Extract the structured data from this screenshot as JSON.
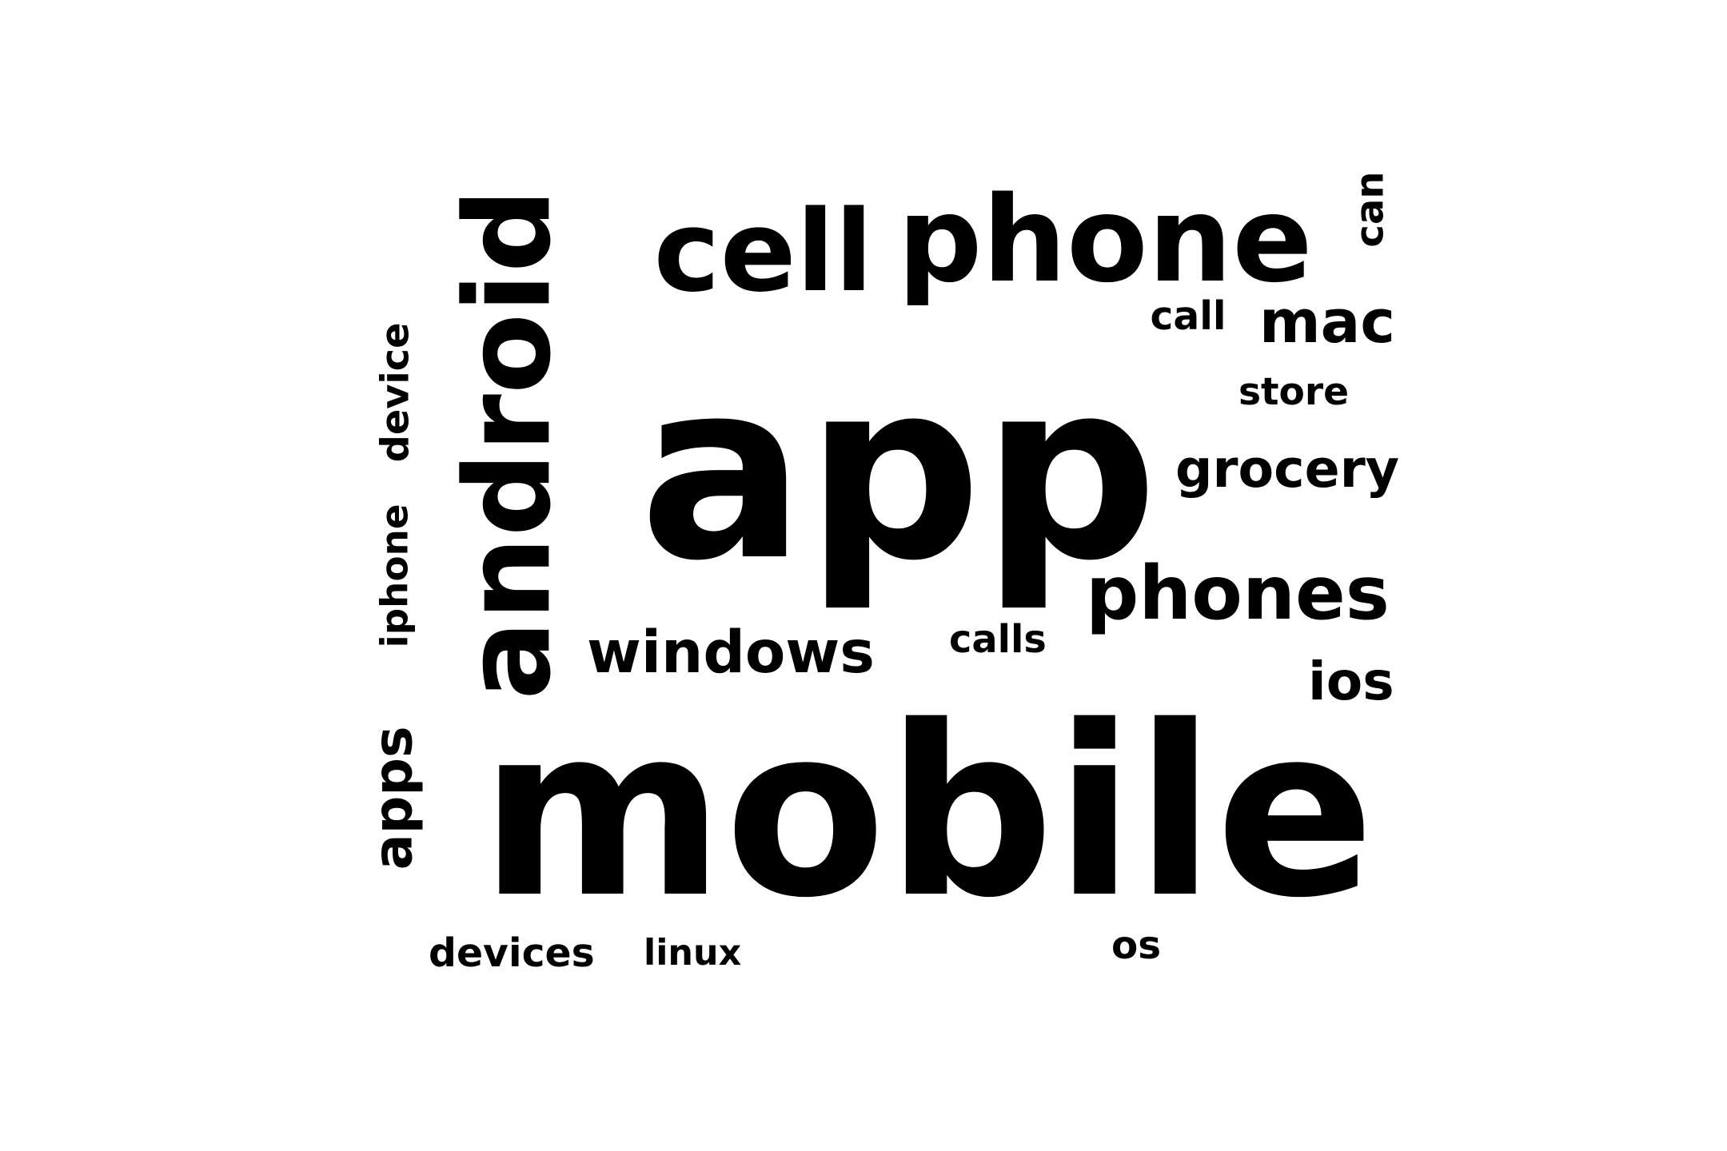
{
  "text_color": "#000000",
  "background_color": "#ffffff",
  "words": [
    {
      "id": "app",
      "text": "app"
    },
    {
      "id": "mobile",
      "text": "mobile"
    },
    {
      "id": "android",
      "text": "android"
    },
    {
      "id": "phone",
      "text": "phone"
    },
    {
      "id": "cell",
      "text": "cell"
    },
    {
      "id": "phones",
      "text": "phones"
    },
    {
      "id": "grocery",
      "text": "grocery"
    },
    {
      "id": "windows",
      "text": "windows"
    },
    {
      "id": "mac",
      "text": "mac"
    },
    {
      "id": "ios",
      "text": "ios"
    },
    {
      "id": "apps",
      "text": "apps"
    },
    {
      "id": "iphone",
      "text": "iphone"
    },
    {
      "id": "device",
      "text": "device"
    },
    {
      "id": "store",
      "text": "store"
    },
    {
      "id": "call",
      "text": "call"
    },
    {
      "id": "calls",
      "text": "calls"
    },
    {
      "id": "devices",
      "text": "devices"
    },
    {
      "id": "linux",
      "text": "linux"
    },
    {
      "id": "can",
      "text": "can"
    },
    {
      "id": "os",
      "text": "os"
    }
  ]
}
